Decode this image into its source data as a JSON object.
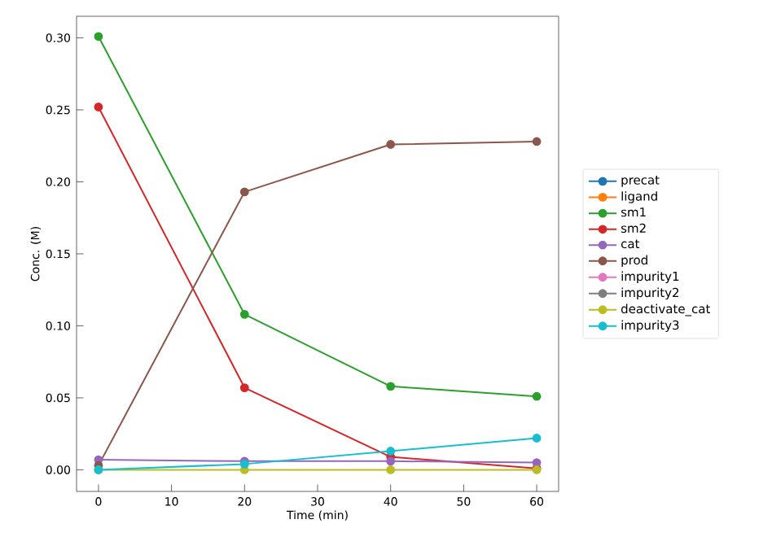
{
  "chart_data": {
    "type": "line",
    "xlabel": "Time (min)",
    "ylabel": "Conc. (M)",
    "x": [
      0,
      20,
      40,
      60
    ],
    "series": [
      {
        "name": "precat",
        "color": "#1f77b4",
        "values": [
          null,
          null,
          null,
          null
        ]
      },
      {
        "name": "ligand",
        "color": "#ff7f0e",
        "values": [
          null,
          null,
          null,
          null
        ]
      },
      {
        "name": "sm1",
        "color": "#2ca02c",
        "values": [
          0.301,
          0.108,
          0.058,
          0.051
        ]
      },
      {
        "name": "sm2",
        "color": "#d62728",
        "values": [
          0.252,
          0.057,
          0.009,
          0.001
        ]
      },
      {
        "name": "cat",
        "color": "#9467bd",
        "values": [
          0.007,
          0.006,
          0.006,
          0.005
        ]
      },
      {
        "name": "prod",
        "color": "#8c564b",
        "values": [
          0.003,
          0.193,
          0.226,
          0.228
        ]
      },
      {
        "name": "impurity1",
        "color": "#e377c2",
        "values": [
          null,
          null,
          null,
          null
        ]
      },
      {
        "name": "impurity2",
        "color": "#7f7f7f",
        "values": [
          null,
          null,
          null,
          null
        ]
      },
      {
        "name": "deactivate_cat",
        "color": "#bcbd22",
        "values": [
          0,
          0,
          0,
          0
        ]
      },
      {
        "name": "impurity3",
        "color": "#17becf",
        "values": [
          0,
          0.004,
          0.013,
          0.022
        ]
      }
    ],
    "xlim": [
      -3,
      63
    ],
    "ylim": [
      -0.015,
      0.315
    ],
    "xticks": [
      0,
      10,
      20,
      30,
      40,
      50,
      60
    ],
    "yticks": [
      {
        "value": 0,
        "label": "0.00"
      },
      {
        "value": 0.05,
        "label": "0.05"
      },
      {
        "value": 0.1,
        "label": "0.10"
      },
      {
        "value": 0.15,
        "label": "0.15"
      },
      {
        "value": 0.2,
        "label": "0.20"
      },
      {
        "value": 0.25,
        "label": "0.25"
      },
      {
        "value": 0.3,
        "label": "0.30"
      }
    ],
    "legend": "right",
    "marker": "circle",
    "line_style": "solid",
    "grid": false
  }
}
